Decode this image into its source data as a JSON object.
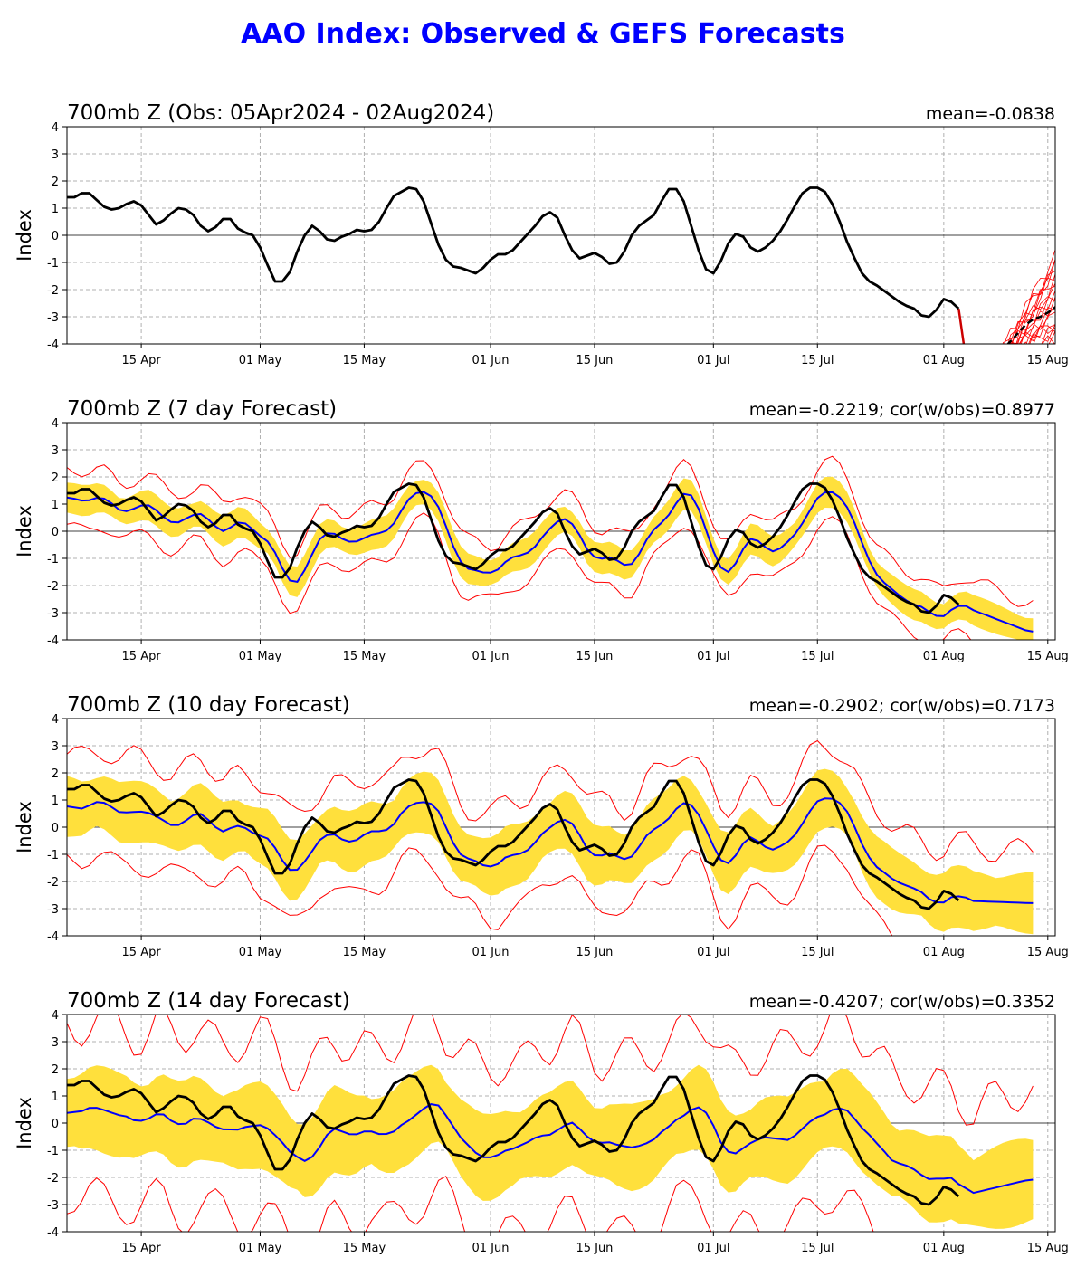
{
  "figure": {
    "title": "AAO Index: Observed & GEFS Forecasts",
    "title_color": "#0000ff"
  },
  "colors": {
    "observed": "#000000",
    "ensemble_mean": "#0000ff",
    "spread": "#ffe03c",
    "members": "#ff0000",
    "grid": "#b0b0b0"
  },
  "chart_data": [
    {
      "type": "line",
      "title": "700mb Z (Obs: 05Apr2024 - 02Aug2024)",
      "stat": "mean=-0.0838",
      "ylabel": "Index",
      "ylim": [
        -4,
        4
      ],
      "yticks": [
        -4,
        -3,
        -2,
        -1,
        0,
        1,
        2,
        3,
        4
      ],
      "xlim": [
        "2024-04-05",
        "2024-08-16"
      ],
      "xticks": [
        {
          "date": "2024-04-15",
          "label": "15 Apr"
        },
        {
          "date": "2024-05-01",
          "label": "01 May"
        },
        {
          "date": "2024-05-15",
          "label": "15 May"
        },
        {
          "date": "2024-06-01",
          "label": "01 Jun"
        },
        {
          "date": "2024-06-15",
          "label": "15 Jun"
        },
        {
          "date": "2024-07-01",
          "label": "01 Jul"
        },
        {
          "date": "2024-07-15",
          "label": "15 Jul"
        },
        {
          "date": "2024-08-01",
          "label": "01 Aug"
        },
        {
          "date": "2024-08-15",
          "label": "15 Aug"
        }
      ],
      "grid": true,
      "observed": {
        "start": "2024-04-05",
        "values": [
          1.4,
          1.4,
          1.55,
          1.55,
          1.3,
          1.05,
          0.95,
          1.0,
          1.15,
          1.25,
          1.1,
          0.75,
          0.4,
          0.55,
          0.8,
          1.0,
          0.95,
          0.75,
          0.35,
          0.15,
          0.3,
          0.6,
          0.6,
          0.25,
          0.1,
          0.0,
          -0.45,
          -1.1,
          -1.7,
          -1.7,
          -1.35,
          -0.6,
          0.0,
          0.35,
          0.15,
          -0.15,
          -0.2,
          -0.05,
          0.05,
          0.2,
          0.15,
          0.2,
          0.5,
          1.0,
          1.45,
          1.6,
          1.75,
          1.7,
          1.25,
          0.45,
          -0.35,
          -0.9,
          -1.15,
          -1.2,
          -1.3,
          -1.4,
          -1.2,
          -0.9,
          -0.7,
          -0.7,
          -0.55,
          -0.25,
          0.05,
          0.35,
          0.7,
          0.85,
          0.65,
          0.0,
          -0.55,
          -0.85,
          -0.75,
          -0.65,
          -0.8,
          -1.05,
          -1.0,
          -0.6,
          0.0,
          0.35,
          0.55,
          0.75,
          1.25,
          1.7,
          1.7,
          1.25,
          0.35,
          -0.55,
          -1.25,
          -1.4,
          -0.95,
          -0.3,
          0.05,
          -0.05,
          -0.45,
          -0.6,
          -0.45,
          -0.2,
          0.15,
          0.6,
          1.1,
          1.55,
          1.75,
          1.75,
          1.6,
          1.15,
          0.5,
          -0.25,
          -0.85,
          -1.4,
          -1.7,
          -1.85,
          -2.05,
          -2.25,
          -2.45,
          -2.6,
          -2.7,
          -2.95,
          -3.0,
          -2.75,
          -2.35,
          -2.45,
          -2.7
        ]
      },
      "forecast_members": true,
      "forecast_mean": [
        -5.0,
        -4.8,
        -4.5,
        -4.2,
        -3.9,
        -3.6,
        -3.3,
        -3.1,
        -3.0,
        -2.85,
        -2.65,
        -2.4
      ]
    },
    {
      "type": "line",
      "title": "700mb Z (7 day Forecast)",
      "stat": "mean=-0.2219; cor(w/obs)=0.8977",
      "ylabel": "Index",
      "ylim": [
        -4,
        4
      ],
      "lead_days": 7,
      "spread_scale": 0.5,
      "member_offset": 0.75,
      "blue_bias": -0.5,
      "blue_end": -3.75
    },
    {
      "type": "line",
      "title": "700mb Z (10 day Forecast)",
      "stat": "mean=-0.2902; cor(w/obs)=0.7173",
      "ylabel": "Index",
      "ylim": [
        -4,
        4
      ],
      "lead_days": 10,
      "spread_scale": 1.0,
      "member_offset": 1.3,
      "blue_bias": -0.5,
      "blue_end": -2.8
    },
    {
      "type": "line",
      "title": "700mb Z (14 day Forecast)",
      "stat": "mean=-0.4207; cor(w/obs)=0.3352",
      "ylabel": "Index",
      "ylim": [
        -4,
        4
      ],
      "lead_days": 14,
      "spread_scale": 1.4,
      "member_offset": 2.5,
      "blue_bias": -0.4,
      "blue_end": -2.05
    }
  ]
}
